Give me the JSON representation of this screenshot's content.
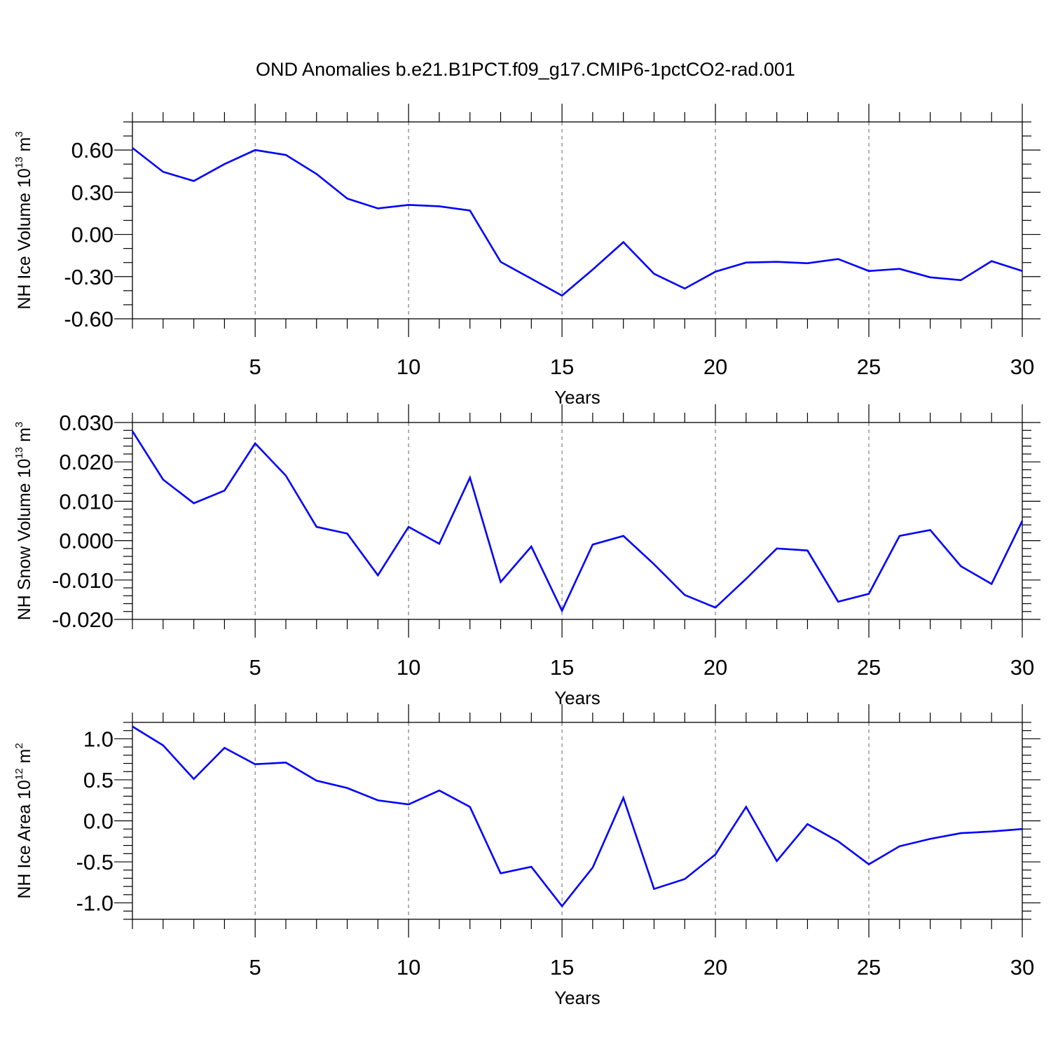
{
  "title": "OND Anomalies b.e21.B1PCT.f09_g17.CMIP6-1pctCO2-rad.001",
  "colors": {
    "series": "#0000ff",
    "axes": "#000000",
    "grid": "#666666"
  },
  "chart_data": [
    {
      "type": "line",
      "xlabel": "Years",
      "ylabel_main": "NH Ice Volume 10",
      "ylabel_exp": "13",
      "ylabel_unit": " m",
      "ylabel_unit_exp": "3",
      "xlim": [
        1,
        30
      ],
      "ylim": [
        -0.6,
        0.8
      ],
      "yticks": [
        -0.6,
        -0.3,
        0.0,
        0.3,
        0.6
      ],
      "ytick_labels": [
        "-0.60",
        "-0.30",
        "0.00",
        "0.30",
        "0.60"
      ],
      "yminor_step": 0.1,
      "xticks": [
        5,
        10,
        15,
        20,
        25,
        30
      ],
      "xtick_labels": [
        "5",
        "10",
        "15",
        "20",
        "25",
        "30"
      ],
      "grid": "dashed vertical lines at major x ticks",
      "x": [
        1,
        2,
        3,
        4,
        5,
        6,
        7,
        8,
        9,
        10,
        11,
        12,
        13,
        14,
        15,
        16,
        17,
        18,
        19,
        20,
        21,
        22,
        23,
        24,
        25,
        26,
        27,
        28,
        29,
        30
      ],
      "values": [
        0.615,
        0.445,
        0.38,
        0.5,
        0.6,
        0.565,
        0.43,
        0.255,
        0.185,
        0.21,
        0.2,
        0.17,
        -0.195,
        -0.315,
        -0.435,
        -0.25,
        -0.055,
        -0.28,
        -0.385,
        -0.265,
        -0.2,
        -0.195,
        -0.205,
        -0.175,
        -0.26,
        -0.245,
        -0.305,
        -0.325,
        -0.19,
        -0.26
      ]
    },
    {
      "type": "line",
      "xlabel": "Years",
      "ylabel_main": "NH Snow Volume 10",
      "ylabel_exp": "13",
      "ylabel_unit": " m",
      "ylabel_unit_exp": "3",
      "xlim": [
        1,
        30
      ],
      "ylim": [
        -0.02,
        0.03
      ],
      "yticks": [
        -0.02,
        -0.01,
        0.0,
        0.01,
        0.02,
        0.03
      ],
      "ytick_labels": [
        "-0.020",
        "-0.010",
        "0.000",
        "0.010",
        "0.020",
        "0.030"
      ],
      "yminor_step": 0.002,
      "xticks": [
        5,
        10,
        15,
        20,
        25,
        30
      ],
      "xtick_labels": [
        "5",
        "10",
        "15",
        "20",
        "25",
        "30"
      ],
      "grid": "dashed vertical lines at major x ticks",
      "x": [
        1,
        2,
        3,
        4,
        5,
        6,
        7,
        8,
        9,
        10,
        11,
        12,
        13,
        14,
        15,
        16,
        17,
        18,
        19,
        20,
        21,
        22,
        23,
        24,
        25,
        26,
        27,
        28,
        29,
        30
      ],
      "values": [
        0.0278,
        0.0155,
        0.0095,
        0.0127,
        0.0247,
        0.0165,
        0.0035,
        0.0018,
        -0.0088,
        0.0035,
        -0.0008,
        0.016,
        -0.0105,
        -0.0015,
        -0.0178,
        -0.001,
        0.0012,
        -0.006,
        -0.0138,
        -0.017,
        -0.0097,
        -0.002,
        -0.0025,
        -0.0155,
        -0.0135,
        0.0012,
        0.0027,
        -0.0065,
        -0.011,
        0.005
      ]
    },
    {
      "type": "line",
      "xlabel": "Years",
      "ylabel_main": "NH Ice Area 10",
      "ylabel_exp": "12",
      "ylabel_unit": " m",
      "ylabel_unit_exp": "2",
      "xlim": [
        1,
        30
      ],
      "ylim": [
        -1.2,
        1.2
      ],
      "yticks": [
        -1.0,
        -0.5,
        0.0,
        0.5,
        1.0
      ],
      "ytick_labels": [
        "-1.0",
        "-0.5",
        "0.0",
        "0.5",
        "1.0"
      ],
      "yminor_step": 0.1,
      "xticks": [
        5,
        10,
        15,
        20,
        25,
        30
      ],
      "xtick_labels": [
        "5",
        "10",
        "15",
        "20",
        "25",
        "30"
      ],
      "grid": "dashed vertical lines at major x ticks",
      "x": [
        1,
        2,
        3,
        4,
        5,
        6,
        7,
        8,
        9,
        10,
        11,
        12,
        13,
        14,
        15,
        16,
        17,
        18,
        19,
        20,
        21,
        22,
        23,
        24,
        25,
        26,
        27,
        28,
        29,
        30
      ],
      "values": [
        1.15,
        0.92,
        0.51,
        0.89,
        0.69,
        0.71,
        0.49,
        0.4,
        0.25,
        0.2,
        0.37,
        0.17,
        -0.64,
        -0.56,
        -1.04,
        -0.57,
        0.28,
        -0.83,
        -0.71,
        -0.41,
        0.17,
        -0.49,
        -0.04,
        -0.25,
        -0.53,
        -0.31,
        -0.22,
        -0.15,
        -0.13,
        -0.1
      ]
    }
  ]
}
